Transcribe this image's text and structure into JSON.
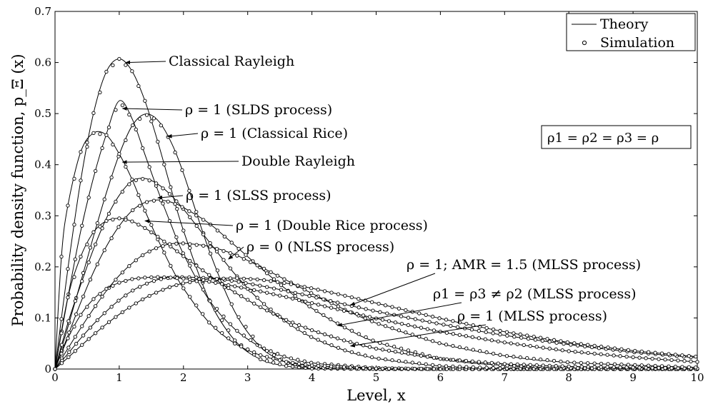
{
  "chart_data": {
    "type": "line",
    "xlabel": "Level, x",
    "ylabel": "Probability density function, p_Ξ (x)",
    "xlim": [
      0,
      10
    ],
    "ylim": [
      0,
      0.7
    ],
    "x_ticks": [
      "0",
      "1",
      "2",
      "3",
      "4",
      "5",
      "6",
      "7",
      "8",
      "9",
      "10"
    ],
    "y_ticks": [
      "0",
      "0.1",
      "0.2",
      "0.3",
      "0.4",
      "0.5",
      "0.6",
      "0.7"
    ],
    "grid": false,
    "legend": {
      "position": "top-right",
      "entries": [
        {
          "label": "Theory",
          "marker": "line"
        },
        {
          "label": "Simulation",
          "marker": "circle"
        }
      ]
    },
    "condition_box": "ρ1 = ρ2 = ρ3 = ρ",
    "annotations": [
      {
        "text": "Classical Rayleigh",
        "at": [
          1.1,
          0.6
        ]
      },
      {
        "text": "ρ = 1 (SLDS process)",
        "at": [
          1.05,
          0.51
        ]
      },
      {
        "text": "ρ = 1 (Classical Rice)",
        "at": [
          1.75,
          0.455
        ]
      },
      {
        "text": "Double Rayleigh",
        "at": [
          1.05,
          0.405
        ]
      },
      {
        "text": "ρ = 1 (SLSS process)",
        "at": [
          1.6,
          0.335
        ]
      },
      {
        "text": "ρ = 1 (Double Rice process)",
        "at": [
          1.4,
          0.29
        ]
      },
      {
        "text": "ρ = 0 (NLSS process)",
        "at": [
          2.7,
          0.215
        ]
      },
      {
        "text": "ρ = 1; AMR = 1.5 (MLSS process)",
        "at": [
          4.6,
          0.125
        ]
      },
      {
        "text": "ρ1 = ρ3 ≠ ρ2 (MLSS process)",
        "at": [
          4.4,
          0.085
        ]
      },
      {
        "text": "ρ = 1 (MLSS process)",
        "at": [
          4.6,
          0.045
        ]
      }
    ],
    "series": [
      {
        "values_at": "theory+simulation",
        "x": [
          0,
          0.2,
          0.4,
          0.6,
          0.8,
          1.0,
          1.2,
          1.4,
          1.6,
          1.8,
          2.0,
          2.4,
          2.8,
          3.2,
          3.6,
          4.0,
          5.0,
          6.0,
          10.0
        ],
        "y": [
          0,
          0.196,
          0.369,
          0.501,
          0.582,
          0.607,
          0.583,
          0.525,
          0.445,
          0.356,
          0.271,
          0.135,
          0.056,
          0.019,
          0.006,
          0.001,
          0,
          0,
          0
        ]
      },
      {
        "values_at": "theory+simulation",
        "x": [
          0,
          0.2,
          0.4,
          0.6,
          0.8,
          1.0,
          1.2,
          1.4,
          1.6,
          1.8,
          2.0,
          2.4,
          2.8,
          3.2,
          3.6,
          4.0,
          5.0,
          6.0,
          10.0
        ],
        "y": [
          0,
          0.14,
          0.27,
          0.375,
          0.46,
          0.525,
          0.49,
          0.42,
          0.35,
          0.285,
          0.225,
          0.135,
          0.078,
          0.043,
          0.023,
          0.012,
          0.002,
          0,
          0
        ]
      },
      {
        "values_at": "theory+simulation",
        "x": [
          0,
          0.2,
          0.4,
          0.6,
          0.8,
          1.0,
          1.2,
          1.4,
          1.6,
          1.8,
          2.0,
          2.4,
          2.8,
          3.2,
          3.6,
          4.0,
          5.0,
          6.0,
          10.0
        ],
        "y": [
          0,
          0.082,
          0.17,
          0.26,
          0.345,
          0.42,
          0.476,
          0.499,
          0.487,
          0.446,
          0.383,
          0.232,
          0.112,
          0.043,
          0.013,
          0.003,
          0,
          0,
          0
        ]
      },
      {
        "values_at": "theory+simulation",
        "x": [
          0,
          0.1,
          0.2,
          0.4,
          0.6,
          0.8,
          1.0,
          1.2,
          1.4,
          1.6,
          1.8,
          2.0,
          2.4,
          2.8,
          3.2,
          3.6,
          4.0,
          5.0,
          6.0,
          7.0,
          10.0
        ],
        "y": [
          0,
          0.22,
          0.32,
          0.425,
          0.462,
          0.458,
          0.421,
          0.371,
          0.31,
          0.254,
          0.202,
          0.158,
          0.091,
          0.05,
          0.027,
          0.014,
          0.007,
          0.001,
          0,
          0,
          0
        ]
      },
      {
        "values_at": "theory+simulation",
        "x": [
          0,
          0.2,
          0.4,
          0.6,
          0.8,
          1.0,
          1.2,
          1.4,
          1.6,
          1.8,
          2.0,
          2.4,
          2.8,
          3.2,
          3.6,
          4.0,
          4.5,
          5.0,
          6.0,
          7.0,
          8.0,
          10.0
        ],
        "y": [
          0,
          0.09,
          0.165,
          0.235,
          0.295,
          0.34,
          0.368,
          0.373,
          0.362,
          0.341,
          0.313,
          0.249,
          0.186,
          0.133,
          0.092,
          0.062,
          0.037,
          0.021,
          0.006,
          0.001,
          0,
          0
        ]
      },
      {
        "values_at": "theory+simulation",
        "x": [
          0,
          0.2,
          0.4,
          0.6,
          0.8,
          1.0,
          1.2,
          1.4,
          1.6,
          1.8,
          2.0,
          2.4,
          2.8,
          3.2,
          3.6,
          4.0,
          4.5,
          5.0,
          6.0,
          7.0,
          8.0,
          10.0
        ],
        "y": [
          0,
          0.065,
          0.13,
          0.19,
          0.24,
          0.28,
          0.31,
          0.326,
          0.331,
          0.327,
          0.316,
          0.285,
          0.242,
          0.198,
          0.156,
          0.119,
          0.082,
          0.053,
          0.02,
          0.007,
          0.002,
          0
        ]
      },
      {
        "values_at": "theory+simulation",
        "x": [
          0,
          0.2,
          0.4,
          0.6,
          0.8,
          1.0,
          1.2,
          1.4,
          1.6,
          1.8,
          2.0,
          2.4,
          2.8,
          3.2,
          3.6,
          4.0,
          4.5,
          5.0,
          6.0,
          7.0,
          8.0,
          10.0
        ],
        "y": [
          0,
          0.14,
          0.22,
          0.268,
          0.29,
          0.295,
          0.289,
          0.276,
          0.259,
          0.24,
          0.221,
          0.184,
          0.15,
          0.121,
          0.096,
          0.076,
          0.056,
          0.04,
          0.02,
          0.01,
          0.005,
          0.001
        ]
      },
      {
        "values_at": "theory+simulation",
        "x": [
          0,
          0.2,
          0.4,
          0.6,
          0.8,
          1.0,
          1.2,
          1.4,
          1.6,
          1.8,
          2.0,
          2.4,
          2.8,
          3.2,
          3.6,
          4.0,
          4.5,
          5.0,
          6.0,
          7.0,
          8.0,
          10.0
        ],
        "y": [
          0,
          0.04,
          0.08,
          0.118,
          0.153,
          0.183,
          0.207,
          0.226,
          0.238,
          0.245,
          0.246,
          0.24,
          0.224,
          0.2,
          0.174,
          0.148,
          0.117,
          0.09,
          0.05,
          0.026,
          0.013,
          0.003
        ]
      },
      {
        "values_at": "theory+simulation",
        "x": [
          0,
          0.2,
          0.4,
          0.6,
          0.8,
          1.0,
          1.2,
          1.4,
          1.6,
          1.8,
          2.0,
          2.4,
          2.8,
          3.2,
          3.6,
          4.0,
          4.5,
          5.0,
          6.0,
          7.0,
          8.0,
          9.0,
          10.0
        ],
        "y": [
          0,
          0.03,
          0.06,
          0.088,
          0.113,
          0.135,
          0.153,
          0.166,
          0.175,
          0.179,
          0.18,
          0.178,
          0.172,
          0.163,
          0.153,
          0.142,
          0.127,
          0.113,
          0.088,
          0.066,
          0.048,
          0.033,
          0.022
        ]
      },
      {
        "values_at": "theory+simulation",
        "x": [
          0,
          0.2,
          0.4,
          0.6,
          0.8,
          1.0,
          1.2,
          1.4,
          1.6,
          1.8,
          2.0,
          2.4,
          2.8,
          3.2,
          3.6,
          4.0,
          4.5,
          5.0,
          6.0,
          7.0,
          8.0,
          9.0,
          10.0
        ],
        "y": [
          0,
          0.06,
          0.106,
          0.137,
          0.157,
          0.169,
          0.176,
          0.179,
          0.18,
          0.179,
          0.177,
          0.171,
          0.162,
          0.152,
          0.141,
          0.129,
          0.114,
          0.099,
          0.073,
          0.052,
          0.035,
          0.023,
          0.014
        ]
      },
      {
        "values_at": "theory+simulation",
        "x": [
          0,
          0.2,
          0.4,
          0.6,
          0.8,
          1.0,
          1.2,
          1.4,
          1.6,
          1.8,
          2.0,
          2.4,
          2.8,
          3.2,
          3.6,
          4.0,
          4.5,
          5.0,
          6.0,
          7.0,
          8.0,
          9.0,
          10.0
        ],
        "y": [
          0,
          0.022,
          0.045,
          0.067,
          0.088,
          0.107,
          0.124,
          0.139,
          0.151,
          0.161,
          0.168,
          0.176,
          0.178,
          0.175,
          0.168,
          0.158,
          0.144,
          0.129,
          0.099,
          0.073,
          0.052,
          0.036,
          0.024
        ]
      }
    ]
  }
}
